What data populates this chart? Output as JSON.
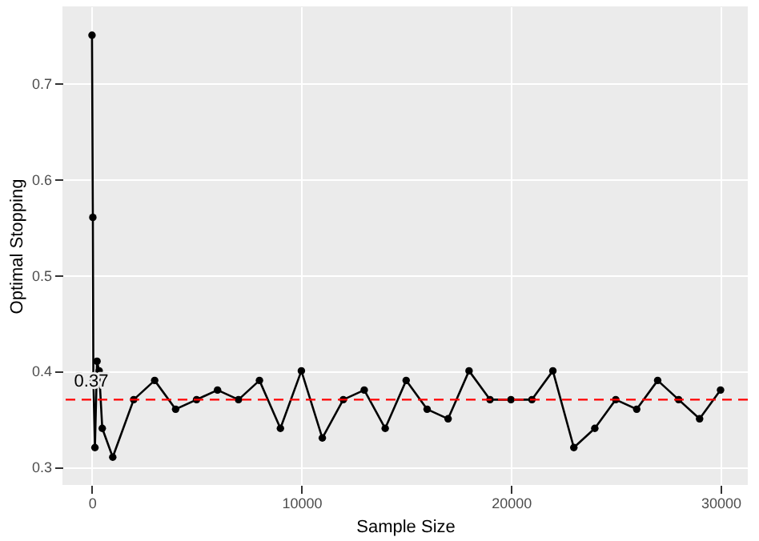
{
  "chart_data": {
    "type": "line",
    "xlabel": "Sample Size",
    "ylabel": "Optimal Stopping",
    "x": [
      10,
      50,
      75,
      150,
      250,
      350,
      500,
      1000,
      2000,
      3000,
      4000,
      5000,
      6000,
      7000,
      8000,
      9000,
      10000,
      11000,
      12000,
      13000,
      14000,
      15000,
      16000,
      17000,
      18000,
      19000,
      20000,
      21000,
      22000,
      23000,
      24000,
      25000,
      26000,
      27000,
      28000,
      29000,
      30000
    ],
    "values": [
      0.75,
      0.56,
      0.39,
      0.32,
      0.41,
      0.4,
      0.34,
      0.31,
      0.37,
      0.39,
      0.36,
      0.37,
      0.38,
      0.37,
      0.39,
      0.34,
      0.4,
      0.33,
      0.37,
      0.38,
      0.34,
      0.39,
      0.36,
      0.35,
      0.4,
      0.37,
      0.37,
      0.37,
      0.4,
      0.32,
      0.34,
      0.37,
      0.36,
      0.39,
      0.37,
      0.35,
      0.38
    ],
    "color": "#000000",
    "marker": "circle",
    "line_style": "solid",
    "grid": true,
    "xlim": [
      -1400,
      31300
    ],
    "xticks": [
      0,
      10000,
      20000,
      30000
    ],
    "ylim": [
      0.281,
      0.78
    ],
    "yticks": [
      0.3,
      0.4,
      0.5,
      0.6,
      0.7
    ],
    "ref_lines": [
      {
        "axis": "y",
        "value": 0.37,
        "color": "#ff0000",
        "line_style": "dashed",
        "label": "0.37"
      }
    ]
  }
}
